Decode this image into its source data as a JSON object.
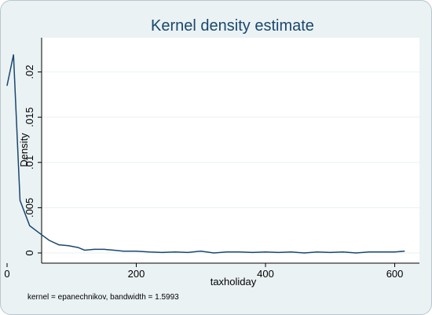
{
  "chart_data": {
    "type": "line",
    "title": "Kernel density estimate",
    "xlabel": "taxholiday",
    "ylabel": "Density",
    "note": "kernel = epanechnikov, bandwidth = 1.5993",
    "xlim": [
      0,
      620
    ],
    "ylim": [
      0,
      0.023
    ],
    "x_ticks": [
      0,
      200,
      400,
      600
    ],
    "x_tick_labels": [
      "0",
      "200",
      "400",
      "600"
    ],
    "y_ticks": [
      0,
      0.005,
      0.01,
      0.015,
      0.02
    ],
    "y_tick_labels": [
      "0",
      ".005",
      ".01",
      ".015",
      ".02"
    ],
    "grid": true,
    "legend": "none",
    "colors": {
      "line": "#1a476f",
      "plot_bg": "#ffffff",
      "outer_bg": "#eaf2f3",
      "grid": "#eaf2f3"
    },
    "series": [
      {
        "x": [
          0,
          10,
          20,
          35,
          50,
          65,
          80,
          95,
          110,
          120,
          135,
          150,
          165,
          180,
          200,
          220,
          240,
          260,
          280,
          300,
          320,
          340,
          360,
          380,
          400,
          420,
          440,
          460,
          480,
          500,
          520,
          540,
          560,
          580,
          600,
          615
        ],
        "y": [
          0.0185,
          0.0219,
          0.0058,
          0.003,
          0.0022,
          0.0014,
          0.0009,
          0.0008,
          0.0006,
          0.0003,
          0.0004,
          0.0004,
          0.0003,
          0.0002,
          0.0002,
          0.0001,
          5e-05,
          0.0001,
          5e-05,
          0.0002,
          0.0,
          0.0001,
          0.0001,
          5e-05,
          0.0001,
          5e-05,
          0.0001,
          0.0,
          0.0001,
          5e-05,
          0.0001,
          0.0,
          0.0001,
          0.0001,
          0.0001,
          0.0002
        ]
      }
    ]
  }
}
